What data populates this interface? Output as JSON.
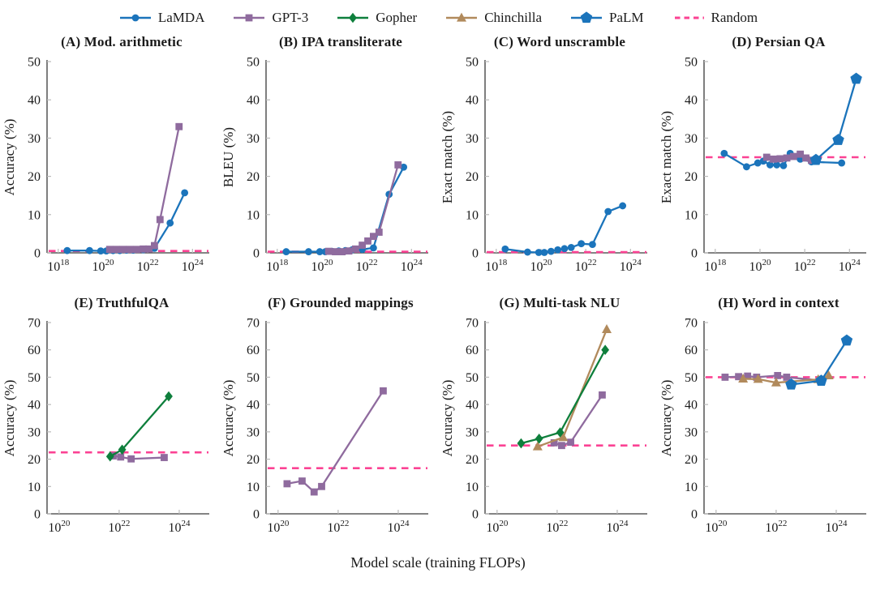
{
  "xlabel": "Model scale (training FLOPs)",
  "colors": {
    "lamda_blue": "#1b74bb",
    "gpt3_purple": "#8f6b9e",
    "gopher_green": "#0e7f3c",
    "chinchilla_tan": "#b18a5c",
    "palm_blue": "#1b74bb",
    "random_pink": "#fb4293",
    "axis": "#3a3a3a",
    "tick": "#bbbbbb"
  },
  "legend": {
    "items": [
      {
        "label": "LaMDA",
        "marker": "circle",
        "color": "#1b74bb"
      },
      {
        "label": "GPT-3",
        "marker": "square",
        "color": "#8f6b9e"
      },
      {
        "label": "Gopher",
        "marker": "diamond",
        "color": "#0e7f3c"
      },
      {
        "label": "Chinchilla",
        "marker": "triangle",
        "color": "#b18a5c"
      },
      {
        "label": "PaLM",
        "marker": "pentagon",
        "color": "#1b74bb"
      },
      {
        "label": "Random",
        "marker": "dash",
        "color": "#fb4293"
      }
    ]
  },
  "chart_data": [
    {
      "type": "line",
      "panel": "A",
      "title": "(A) Mod. arithmetic",
      "ylabel": "Accuracy (%)",
      "ylim": [
        0,
        50
      ],
      "ytick_step": 10,
      "xlim": [
        17.5,
        24.75
      ],
      "xticks": [
        18,
        20,
        22,
        24
      ],
      "x_axis_note": "log10 training FLOPs",
      "grid": false,
      "random_baseline": 0.5,
      "series": [
        {
          "name": "LaMDA",
          "marker": "circle",
          "color": "#1b74bb",
          "x": [
            18.4,
            19.4,
            19.9,
            20.15,
            20.45,
            20.75,
            21.05,
            21.35,
            21.8,
            22.3,
            23.0,
            23.65
          ],
          "y": [
            0.6,
            0.6,
            0.5,
            0.5,
            0.6,
            0.6,
            0.7,
            0.7,
            0.8,
            1.2,
            7.8,
            15.7
          ]
        },
        {
          "name": "GPT-3",
          "marker": "square",
          "color": "#8f6b9e",
          "x": [
            20.3,
            20.6,
            20.9,
            21.2,
            21.5,
            21.8,
            22.05,
            22.3,
            22.55,
            23.4
          ],
          "y": [
            0.9,
            0.9,
            0.9,
            0.9,
            0.9,
            1.0,
            1.0,
            1.9,
            8.7,
            33.0
          ]
        }
      ]
    },
    {
      "type": "line",
      "panel": "B",
      "title": "(B) IPA transliterate",
      "ylabel": "BLEU (%)",
      "ylim": [
        0,
        50
      ],
      "ytick_step": 10,
      "xlim": [
        17.5,
        24.75
      ],
      "xticks": [
        18,
        20,
        22,
        24
      ],
      "x_axis_note": "log10 training FLOPs",
      "grid": false,
      "random_baseline": 0.3,
      "series": [
        {
          "name": "LaMDA",
          "marker": "circle",
          "color": "#1b74bb",
          "x": [
            18.4,
            19.4,
            19.9,
            20.15,
            20.45,
            20.75,
            21.05,
            21.35,
            21.8,
            22.3,
            23.0,
            23.65
          ],
          "y": [
            0.3,
            0.3,
            0.3,
            0.3,
            0.4,
            0.5,
            0.6,
            0.8,
            0.9,
            1.3,
            15.3,
            22.4
          ]
        },
        {
          "name": "GPT-3",
          "marker": "square",
          "color": "#8f6b9e",
          "x": [
            20.3,
            20.6,
            20.9,
            21.2,
            21.5,
            21.8,
            22.05,
            22.3,
            22.55,
            23.4
          ],
          "y": [
            0.4,
            0.3,
            0.3,
            0.5,
            1.0,
            2.0,
            3.1,
            4.3,
            5.4,
            23.0
          ]
        }
      ]
    },
    {
      "type": "line",
      "panel": "C",
      "title": "(C) Word unscramble",
      "ylabel": "Exact match (%)",
      "ylim": [
        0,
        50
      ],
      "ytick_step": 10,
      "xlim": [
        17.5,
        24.75
      ],
      "xticks": [
        18,
        20,
        22,
        24
      ],
      "x_axis_note": "log10 training FLOPs",
      "grid": false,
      "random_baseline": 0.2,
      "series": [
        {
          "name": "LaMDA",
          "marker": "circle",
          "color": "#1b74bb",
          "x": [
            18.4,
            19.4,
            19.9,
            20.15,
            20.45,
            20.75,
            21.05,
            21.35,
            21.8,
            22.3,
            23.0,
            23.65
          ],
          "y": [
            1.0,
            0.2,
            0.1,
            0.1,
            0.4,
            0.8,
            1.1,
            1.4,
            2.4,
            2.2,
            10.8,
            12.3
          ]
        }
      ]
    },
    {
      "type": "line",
      "panel": "D",
      "title": "(D) Persian QA",
      "ylabel": "Exact match (%)",
      "ylim": [
        0,
        50
      ],
      "ytick_step": 10,
      "xlim": [
        17.5,
        24.75
      ],
      "xticks": [
        18,
        20,
        22,
        24
      ],
      "x_axis_note": "log10 training FLOPs",
      "grid": false,
      "random_baseline": 25,
      "series": [
        {
          "name": "LaMDA",
          "marker": "circle",
          "color": "#1b74bb",
          "x": [
            18.4,
            19.4,
            19.9,
            20.15,
            20.45,
            20.75,
            21.05,
            21.35,
            21.8,
            22.3,
            23.65
          ],
          "y": [
            26.0,
            22.5,
            23.5,
            24.0,
            23.0,
            23.0,
            22.8,
            26.0,
            24.5,
            23.8,
            23.5
          ]
        },
        {
          "name": "GPT-3",
          "marker": "square",
          "color": "#8f6b9e",
          "x": [
            20.3,
            20.6,
            20.9,
            21.2,
            21.5,
            21.8,
            22.05,
            22.3
          ],
          "y": [
            25.0,
            24.5,
            24.6,
            24.8,
            25.2,
            25.8,
            24.8,
            24.2
          ]
        },
        {
          "name": "PaLM",
          "marker": "pentagon",
          "color": "#1b74bb",
          "x": [
            22.5,
            23.5,
            24.3
          ],
          "y": [
            24.3,
            29.5,
            45.5
          ]
        }
      ]
    },
    {
      "type": "line",
      "panel": "E",
      "title": "(E) TruthfulQA",
      "ylabel": "Accuracy (%)",
      "ylim": [
        0,
        70
      ],
      "ytick_step": 10,
      "xlim": [
        19.6,
        25.0
      ],
      "xticks": [
        20,
        22,
        24
      ],
      "x_axis_note": "log10 training FLOPs",
      "grid": false,
      "random_baseline": 22.5,
      "series": [
        {
          "name": "GPT-3",
          "marker": "square",
          "color": "#8f6b9e",
          "x": [
            21.8,
            22.05,
            22.4,
            23.5
          ],
          "y": [
            21.2,
            20.8,
            20.1,
            20.6
          ]
        },
        {
          "name": "Gopher",
          "marker": "diamond",
          "color": "#0e7f3c",
          "x": [
            21.7,
            22.1,
            23.65
          ],
          "y": [
            21.0,
            23.5,
            43.0
          ]
        }
      ]
    },
    {
      "type": "line",
      "panel": "F",
      "title": "(F) Grounded mappings",
      "ylabel": "Accuracy (%)",
      "ylim": [
        0,
        70
      ],
      "ytick_step": 10,
      "xlim": [
        19.6,
        25.0
      ],
      "xticks": [
        20,
        22,
        24
      ],
      "x_axis_note": "log10 training FLOPs",
      "grid": false,
      "random_baseline": 16.7,
      "series": [
        {
          "name": "GPT-3",
          "marker": "square",
          "color": "#8f6b9e",
          "x": [
            20.3,
            20.8,
            21.2,
            21.45,
            23.5
          ],
          "y": [
            11.0,
            12.0,
            8.0,
            10.0,
            45.0
          ]
        }
      ]
    },
    {
      "type": "line",
      "panel": "G",
      "title": "(G) Multi-task NLU",
      "ylabel": "Accuracy (%)",
      "ylim": [
        0,
        70
      ],
      "ytick_step": 10,
      "xlim": [
        19.6,
        25.0
      ],
      "xticks": [
        20,
        22,
        24
      ],
      "x_axis_note": "log10 training FLOPs",
      "grid": false,
      "random_baseline": 25,
      "series": [
        {
          "name": "GPT-3",
          "marker": "square",
          "color": "#8f6b9e",
          "x": [
            21.9,
            22.15,
            22.45,
            23.5
          ],
          "y": [
            26.0,
            25.0,
            26.2,
            43.5
          ]
        },
        {
          "name": "Chinchilla",
          "marker": "triangle",
          "color": "#b18a5c",
          "x": [
            21.35,
            22.2,
            23.65
          ],
          "y": [
            24.6,
            28.0,
            67.5
          ]
        },
        {
          "name": "Gopher",
          "marker": "diamond",
          "color": "#0e7f3c",
          "x": [
            20.8,
            21.4,
            22.1,
            23.6
          ],
          "y": [
            25.8,
            27.5,
            29.8,
            60.0
          ]
        }
      ]
    },
    {
      "type": "line",
      "panel": "H",
      "title": "(H) Word in context",
      "ylabel": "Accuracy (%)",
      "ylim": [
        0,
        70
      ],
      "ytick_step": 10,
      "xlim": [
        19.6,
        25.0
      ],
      "xticks": [
        20,
        22,
        24
      ],
      "x_axis_note": "log10 training FLOPs",
      "grid": false,
      "random_baseline": 50,
      "series": [
        {
          "name": "GPT-3",
          "marker": "square",
          "color": "#8f6b9e",
          "x": [
            20.3,
            20.75,
            21.05,
            21.35,
            22.05,
            22.35,
            23.5
          ],
          "y": [
            50.0,
            50.2,
            50.4,
            50.0,
            50.6,
            50.0,
            48.8
          ]
        },
        {
          "name": "Chinchilla",
          "marker": "triangle",
          "color": "#b18a5c",
          "x": [
            20.9,
            21.4,
            22.0,
            23.4,
            23.75
          ],
          "y": [
            49.4,
            49.3,
            48.0,
            49.2,
            50.6
          ]
        },
        {
          "name": "PaLM",
          "marker": "pentagon",
          "color": "#1b74bb",
          "x": [
            22.5,
            23.5,
            24.35
          ],
          "y": [
            47.3,
            48.7,
            63.4
          ]
        }
      ]
    }
  ]
}
